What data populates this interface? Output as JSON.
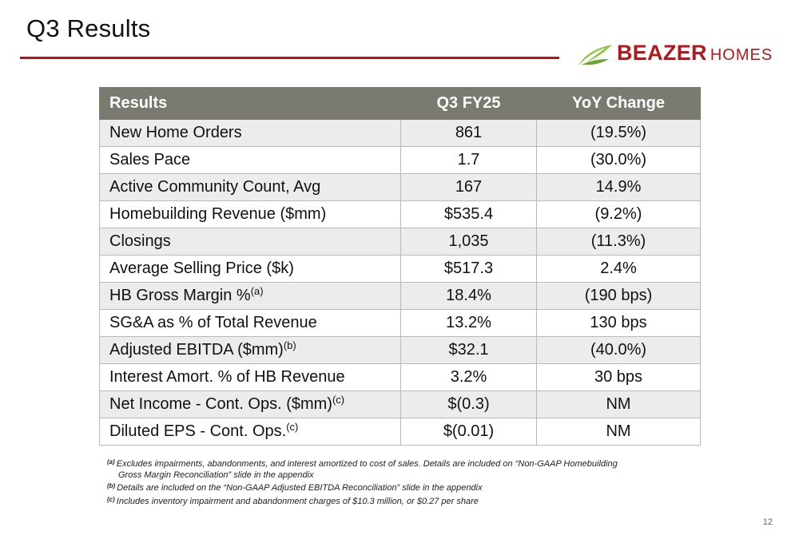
{
  "slide": {
    "title": "Q3 Results",
    "page_number": "12"
  },
  "logo": {
    "brand": "BEAZER",
    "sub": "HOMES",
    "accent_color": "#b0181c",
    "leaf_color": "#8dc63f"
  },
  "table": {
    "headers": [
      "Results",
      "Q3 FY25",
      "YoY Change"
    ],
    "rows": [
      {
        "label": "New Home Orders",
        "note": "",
        "q3": "861",
        "yoy": "(19.5%)"
      },
      {
        "label": "Sales Pace",
        "note": "",
        "q3": "1.7",
        "yoy": "(30.0%)"
      },
      {
        "label": "Active Community Count, Avg",
        "note": "",
        "q3": "167",
        "yoy": "14.9%"
      },
      {
        "label": "Homebuilding Revenue ($mm)",
        "note": "",
        "q3": "$535.4",
        "yoy": "(9.2%)"
      },
      {
        "label": "Closings",
        "note": "",
        "q3": "1,035",
        "yoy": "(11.3%)"
      },
      {
        "label": "Average Selling Price ($k)",
        "note": "",
        "q3": "$517.3",
        "yoy": "2.4%"
      },
      {
        "label": "HB Gross Margin %",
        "note": "(a)",
        "q3": "18.4%",
        "yoy": "(190 bps)"
      },
      {
        "label": "SG&A as % of Total Revenue",
        "note": "",
        "q3": "13.2%",
        "yoy": "130 bps"
      },
      {
        "label": "Adjusted EBITDA ($mm)",
        "note": "(b)",
        "q3": "$32.1",
        "yoy": "(40.0%)"
      },
      {
        "label": "Interest Amort. % of HB Revenue",
        "note": "",
        "q3": "3.2%",
        "yoy": "30 bps"
      },
      {
        "label": "Net Income - Cont. Ops. ($mm)",
        "note": "(c)",
        "q3": "$(0.3)",
        "yoy": "NM"
      },
      {
        "label": "Diluted EPS - Cont. Ops.",
        "note": "(c)",
        "q3": "$(0.01)",
        "yoy": "NM"
      }
    ],
    "header_color": "#7b7a70",
    "stripe_color": "#ececec"
  },
  "footnotes": [
    {
      "mark": "(a)",
      "line1": "Excludes impairments, abandonments, and interest amortized to cost of sales. Details are included on “Non-GAAP Homebuilding",
      "line2": "Gross Margin Reconciliation” slide in the appendix"
    },
    {
      "mark": "(b)",
      "line1": "Details are included on the “Non-GAAP Adjusted EBITDA Reconciliation” slide in the appendix",
      "line2": ""
    },
    {
      "mark": "(c)",
      "line1": "Includes inventory impairment and abandonment charges of $10.3 million, or $0.27 per share",
      "line2": ""
    }
  ]
}
